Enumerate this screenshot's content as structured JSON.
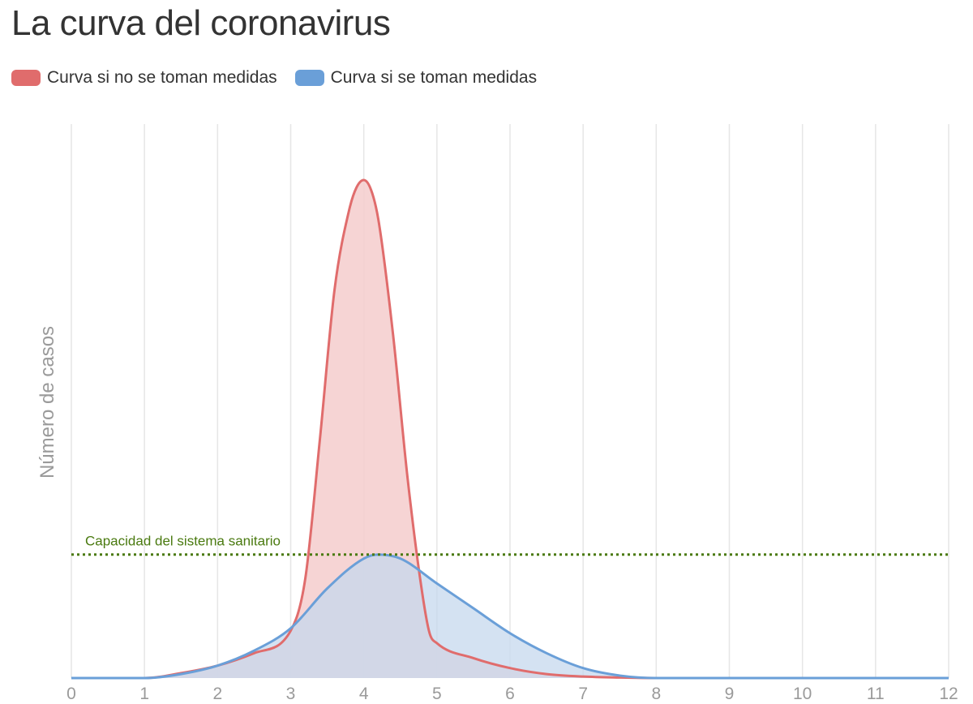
{
  "chart_data": {
    "type": "area",
    "title": "La curva del coronavirus",
    "xlabel": "",
    "ylabel": "Número de casos",
    "xlim": [
      0,
      12
    ],
    "ylim": [
      0,
      1
    ],
    "x_ticks": [
      "0",
      "1",
      "2",
      "3",
      "4",
      "5",
      "6",
      "7",
      "8",
      "9",
      "10",
      "11",
      "12"
    ],
    "grid": "vertical",
    "legend_position": "top-left",
    "series": [
      {
        "name": "Curva si no se toman medidas",
        "color": "#e06c6c",
        "fill": "#f5cccc",
        "x": [
          0,
          1,
          1.5,
          2,
          2.5,
          3,
          3.2,
          3.4,
          3.6,
          3.8,
          3.9,
          4,
          4.1,
          4.2,
          4.4,
          4.6,
          4.8,
          4.9,
          5,
          5.5,
          6,
          6.5,
          7,
          7.5,
          8,
          9,
          10,
          11,
          12
        ],
        "values": [
          0,
          0,
          0.01,
          0.025,
          0.05,
          0.095,
          0.2,
          0.48,
          0.78,
          0.94,
          0.985,
          1,
          0.98,
          0.92,
          0.69,
          0.4,
          0.17,
          0.09,
          0.07,
          0.04,
          0.02,
          0.008,
          0.003,
          0.001,
          0,
          0,
          0,
          0,
          0
        ]
      },
      {
        "name": "Curva si se toman medidas",
        "color": "#6a9fd8",
        "fill": "#c6d8ee",
        "x": [
          0,
          1,
          1.5,
          2,
          2.5,
          3,
          3.5,
          4,
          4.2,
          4.5,
          5,
          5.5,
          6,
          6.5,
          7,
          7.5,
          8,
          9,
          10,
          11,
          12
        ],
        "values": [
          0,
          0,
          0.008,
          0.025,
          0.055,
          0.1,
          0.18,
          0.24,
          0.248,
          0.24,
          0.19,
          0.14,
          0.09,
          0.05,
          0.02,
          0.005,
          0,
          0,
          0,
          0,
          0
        ]
      }
    ],
    "annotations": [
      {
        "type": "hline",
        "label": "Capacidad del sistema sanitario",
        "y": 0.248,
        "color": "#4a7a10",
        "style": "dotted"
      }
    ]
  }
}
